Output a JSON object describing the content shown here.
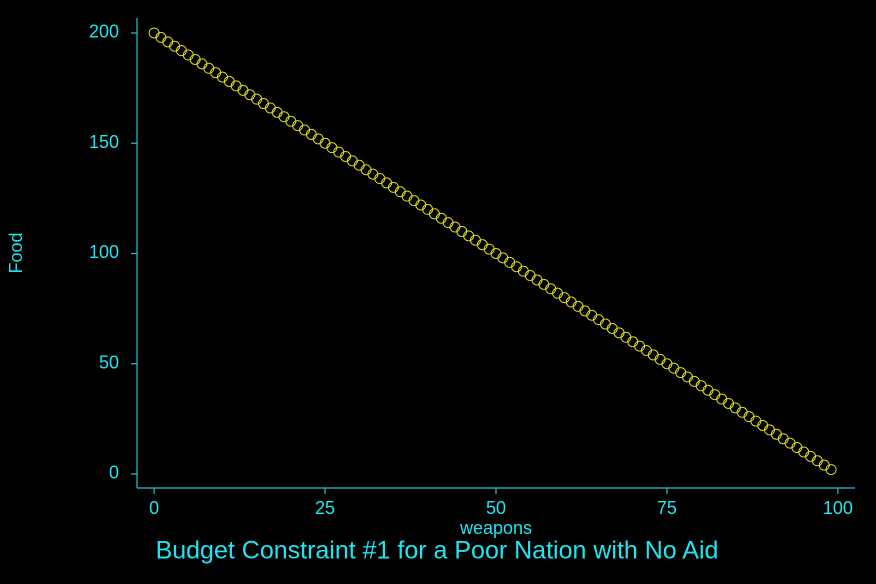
{
  "chart_data": {
    "type": "scatter",
    "title": "Budget Constraint #1 for a Poor Nation with No Aid",
    "x_label": "weapons",
    "y_label": "Food",
    "x": [
      0,
      1,
      2,
      3,
      4,
      5,
      6,
      7,
      8,
      9,
      10,
      11,
      12,
      13,
      14,
      15,
      16,
      17,
      18,
      19,
      20,
      21,
      22,
      23,
      24,
      25,
      26,
      27,
      28,
      29,
      30,
      31,
      32,
      33,
      34,
      35,
      36,
      37,
      38,
      39,
      40,
      41,
      42,
      43,
      44,
      45,
      46,
      47,
      48,
      49,
      50,
      51,
      52,
      53,
      54,
      55,
      56,
      57,
      58,
      59,
      60,
      61,
      62,
      63,
      64,
      65,
      66,
      67,
      68,
      69,
      70,
      71,
      72,
      73,
      74,
      75,
      76,
      77,
      78,
      79,
      80,
      81,
      82,
      83,
      84,
      85,
      86,
      87,
      88,
      89,
      90,
      91,
      92,
      93,
      94,
      95,
      96,
      97,
      98,
      99
    ],
    "values": [
      200,
      198,
      196,
      194,
      192,
      190,
      188,
      186,
      184,
      182,
      180,
      178,
      176,
      174,
      172,
      170,
      168,
      166,
      164,
      162,
      160,
      158,
      156,
      154,
      152,
      150,
      148,
      146,
      144,
      142,
      140,
      138,
      136,
      134,
      132,
      130,
      128,
      126,
      124,
      122,
      120,
      118,
      116,
      114,
      112,
      110,
      108,
      106,
      104,
      102,
      100,
      98,
      96,
      94,
      92,
      90,
      88,
      86,
      84,
      82,
      80,
      78,
      76,
      74,
      72,
      70,
      68,
      66,
      64,
      62,
      60,
      58,
      56,
      54,
      52,
      50,
      48,
      46,
      44,
      42,
      40,
      38,
      36,
      34,
      32,
      30,
      28,
      26,
      24,
      22,
      20,
      18,
      16,
      14,
      12,
      10,
      8,
      6,
      4,
      2
    ],
    "color": "#d8d820",
    "xlim": [
      -2.5,
      102.5
    ],
    "ylim": [
      -6.35,
      206.8
    ],
    "xticks": [
      0,
      25,
      50,
      75,
      100
    ],
    "yticks": [
      0,
      50,
      100,
      150,
      200
    ]
  }
}
